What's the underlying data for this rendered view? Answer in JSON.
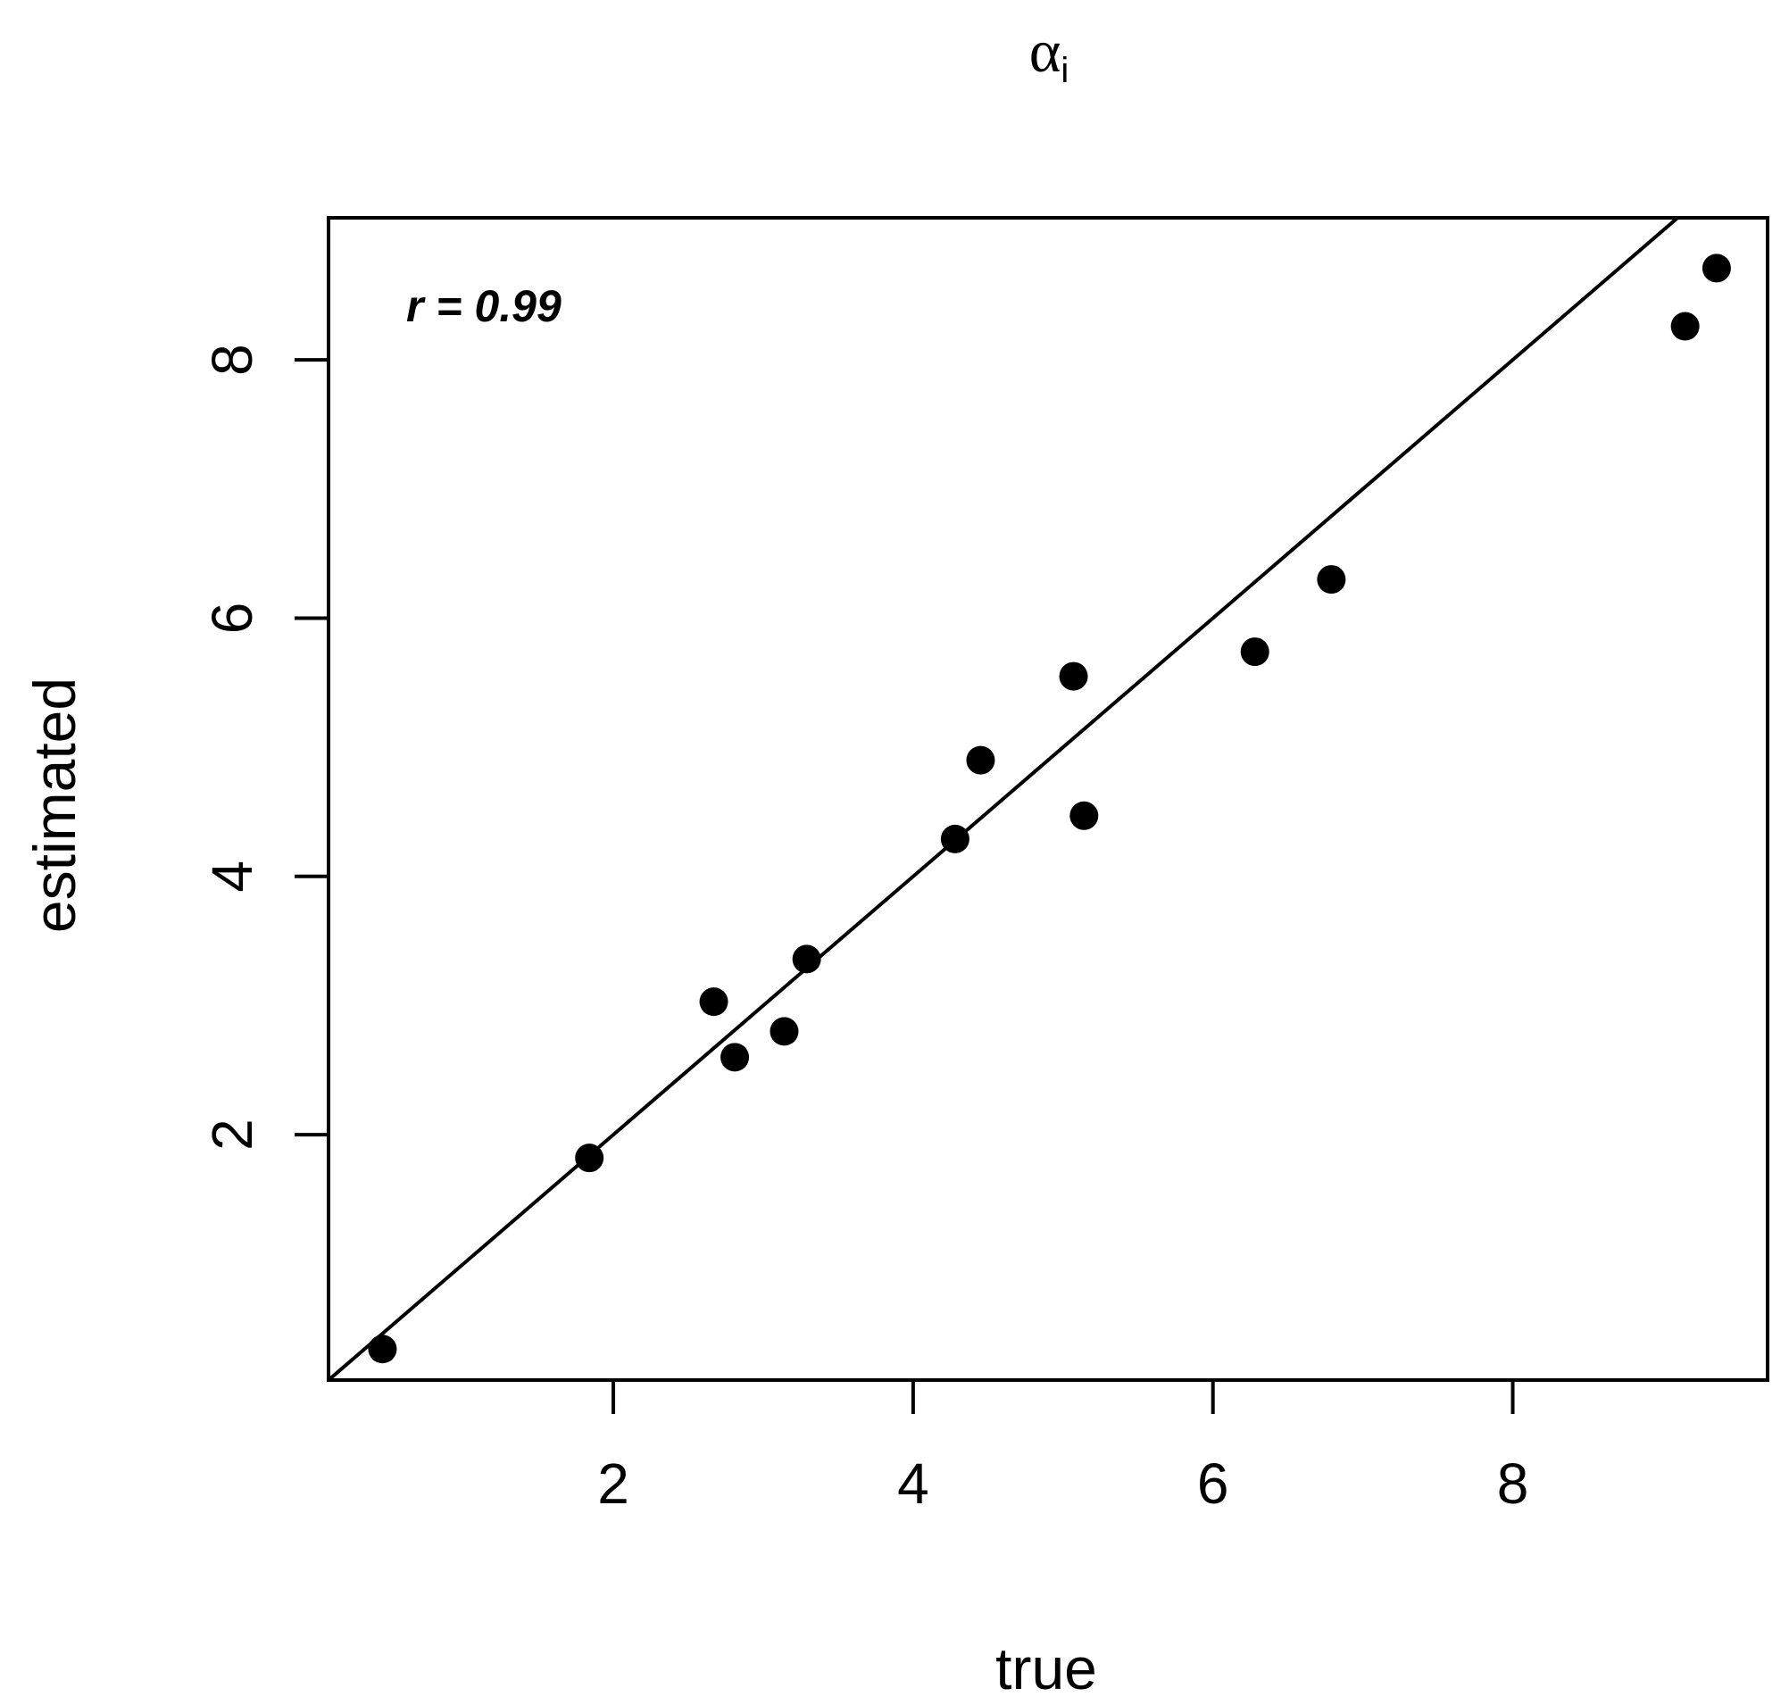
{
  "chart_data": {
    "type": "scatter",
    "title": "α",
    "title_subscript": "i",
    "xlabel": "true",
    "ylabel": "estimated",
    "xlim": [
      0.1,
      9.7
    ],
    "ylim": [
      0.1,
      9.1
    ],
    "x_ticks": [
      2,
      4,
      6,
      8
    ],
    "y_ticks": [
      2,
      4,
      6,
      8
    ],
    "x_tick_labels": [
      "2",
      "4",
      "6",
      "8"
    ],
    "y_tick_labels": [
      "2",
      "4",
      "6",
      "8"
    ],
    "grid": false,
    "annotation": "r = 0.99",
    "reference_line": {
      "intercept": 0.0,
      "slope": 1.0
    },
    "colors": {
      "points": "#000000",
      "line": "#000000",
      "frame": "#000000"
    },
    "points": [
      {
        "x": 0.46,
        "y": 0.34
      },
      {
        "x": 1.84,
        "y": 1.82
      },
      {
        "x": 2.67,
        "y": 3.03
      },
      {
        "x": 2.81,
        "y": 2.6
      },
      {
        "x": 3.14,
        "y": 2.8
      },
      {
        "x": 3.29,
        "y": 3.36
      },
      {
        "x": 4.28,
        "y": 4.29
      },
      {
        "x": 4.45,
        "y": 4.9
      },
      {
        "x": 5.07,
        "y": 5.55
      },
      {
        "x": 5.14,
        "y": 4.47
      },
      {
        "x": 6.28,
        "y": 5.74
      },
      {
        "x": 6.79,
        "y": 6.3
      },
      {
        "x": 9.15,
        "y": 8.26
      },
      {
        "x": 9.36,
        "y": 8.71
      }
    ]
  }
}
